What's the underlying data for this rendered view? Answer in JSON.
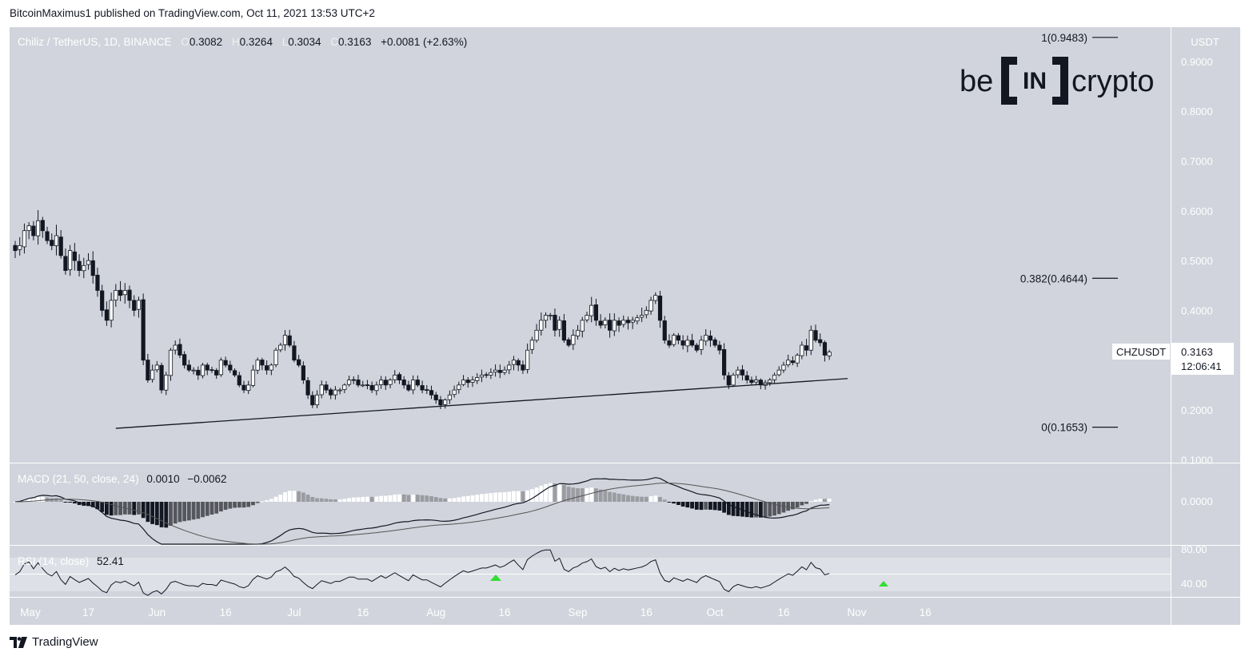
{
  "header": {
    "published": "BitcoinMaximus1 published on TradingView.com, Oct 11, 2021 13:53 UTC+2"
  },
  "legend": {
    "symbol": "Chiliz / TetherUS, 1D, BINANCE",
    "o_label": "O",
    "o_value": "0.3082",
    "h_label": "H",
    "h_value": "0.3264",
    "l_label": "L",
    "l_value": "0.3034",
    "c_label": "C",
    "c_value": "0.3163",
    "change": "+0.0081 (+2.63%)"
  },
  "price_axis": {
    "currency": "USDT",
    "ticks": [
      "0.9000",
      "0.8000",
      "0.7000",
      "0.6000",
      "0.5000",
      "0.4000",
      "0.3000",
      "0.2000",
      "0.1000"
    ],
    "last_label": "CHZUSDT",
    "last_price": "0.3163",
    "countdown": "12:06:41"
  },
  "fib_labels": {
    "level_1": "1(0.9483)",
    "level_0382": "0.382(0.4644)",
    "level_0": "0(0.1653)"
  },
  "logo": {
    "left": "be",
    "mid": "IN",
    "right": "crypto"
  },
  "macd": {
    "label": "MACD (21, 50, close, 24)",
    "value1": "0.0010",
    "value2": "−0.0062",
    "tick": "0.0000"
  },
  "rsi": {
    "label": "RSI (14, close)",
    "value": "52.41",
    "ticks": [
      "80.00",
      "40.00"
    ]
  },
  "time_axis": [
    "May",
    "17",
    "Jun",
    "16",
    "Jul",
    "16",
    "Aug",
    "16",
    "Sep",
    "16",
    "Oct",
    "16",
    "Nov",
    "16"
  ],
  "footer": {
    "brand": "TradingView"
  },
  "colors": {
    "bg": "#d1d4dc",
    "up_body": "#ffffff",
    "down_body": "#131722",
    "line": "#131722",
    "rsi_band": "#dde0e6",
    "arrow": "#33dd33"
  },
  "chart_data": {
    "type": "candlestick",
    "title": "Chiliz / TetherUS, 1D, BINANCE",
    "ylim": [
      0.1,
      0.95
    ],
    "y_ticks": [
      0.1,
      0.2,
      0.3,
      0.4,
      0.5,
      0.6,
      0.7,
      0.8,
      0.9
    ],
    "x_ticks": [
      "May",
      "17",
      "Jun",
      "16",
      "Jul",
      "16",
      "Aug",
      "16",
      "Sep",
      "16",
      "Oct",
      "16",
      "Nov",
      "16"
    ],
    "fib_levels": [
      {
        "label": "1(0.9483)",
        "value": 0.9483
      },
      {
        "label": "0.382(0.4644)",
        "value": 0.4644
      },
      {
        "label": "0(0.1653)",
        "value": 0.1653
      }
    ],
    "support_line": {
      "from": [
        "2021-05-23",
        0.163
      ],
      "to": [
        "2021-10-30",
        0.263
      ]
    },
    "series": [
      {
        "start": "2021-05-01",
        "close": [
          0.52,
          0.53,
          0.56,
          0.57,
          0.55,
          0.58,
          0.56,
          0.54,
          0.53,
          0.55,
          0.51,
          0.48,
          0.52,
          0.5,
          0.48,
          0.49,
          0.5,
          0.47,
          0.44,
          0.4,
          0.38,
          0.42,
          0.44,
          0.43,
          0.44,
          0.42,
          0.4,
          0.42,
          0.3,
          0.26,
          0.28,
          0.29,
          0.24,
          0.27,
          0.32,
          0.33,
          0.31,
          0.29,
          0.28,
          0.28,
          0.27,
          0.29,
          0.28,
          0.28,
          0.27,
          0.3,
          0.29,
          0.28,
          0.27,
          0.25,
          0.24,
          0.25,
          0.28,
          0.3,
          0.29,
          0.28,
          0.29,
          0.32,
          0.33,
          0.35,
          0.33,
          0.3,
          0.29,
          0.26,
          0.23,
          0.21,
          0.23,
          0.25,
          0.24,
          0.23,
          0.24,
          0.24,
          0.25,
          0.26,
          0.26,
          0.25,
          0.25,
          0.25,
          0.24,
          0.25,
          0.26,
          0.25,
          0.26,
          0.27,
          0.26,
          0.25,
          0.24,
          0.26,
          0.25,
          0.24,
          0.24,
          0.23,
          0.22,
          0.21,
          0.22,
          0.23,
          0.24,
          0.25,
          0.26,
          0.255,
          0.26,
          0.265,
          0.27,
          0.27,
          0.275,
          0.28,
          0.275,
          0.28,
          0.29,
          0.3,
          0.29,
          0.28,
          0.32,
          0.34,
          0.36,
          0.38,
          0.39,
          0.39,
          0.36,
          0.38,
          0.34,
          0.33,
          0.35,
          0.36,
          0.38,
          0.39,
          0.41,
          0.38,
          0.37,
          0.38,
          0.36,
          0.38,
          0.37,
          0.38,
          0.375,
          0.38,
          0.385,
          0.39,
          0.4,
          0.42,
          0.43,
          0.38,
          0.34,
          0.33,
          0.35,
          0.34,
          0.33,
          0.34,
          0.33,
          0.32,
          0.34,
          0.35,
          0.34,
          0.33,
          0.32,
          0.27,
          0.25,
          0.27,
          0.28,
          0.27,
          0.26,
          0.255,
          0.26,
          0.25,
          0.255,
          0.26,
          0.27,
          0.28,
          0.29,
          0.3,
          0.295,
          0.31,
          0.33,
          0.32,
          0.36,
          0.34,
          0.335,
          0.31,
          0.3163
        ]
      }
    ]
  }
}
